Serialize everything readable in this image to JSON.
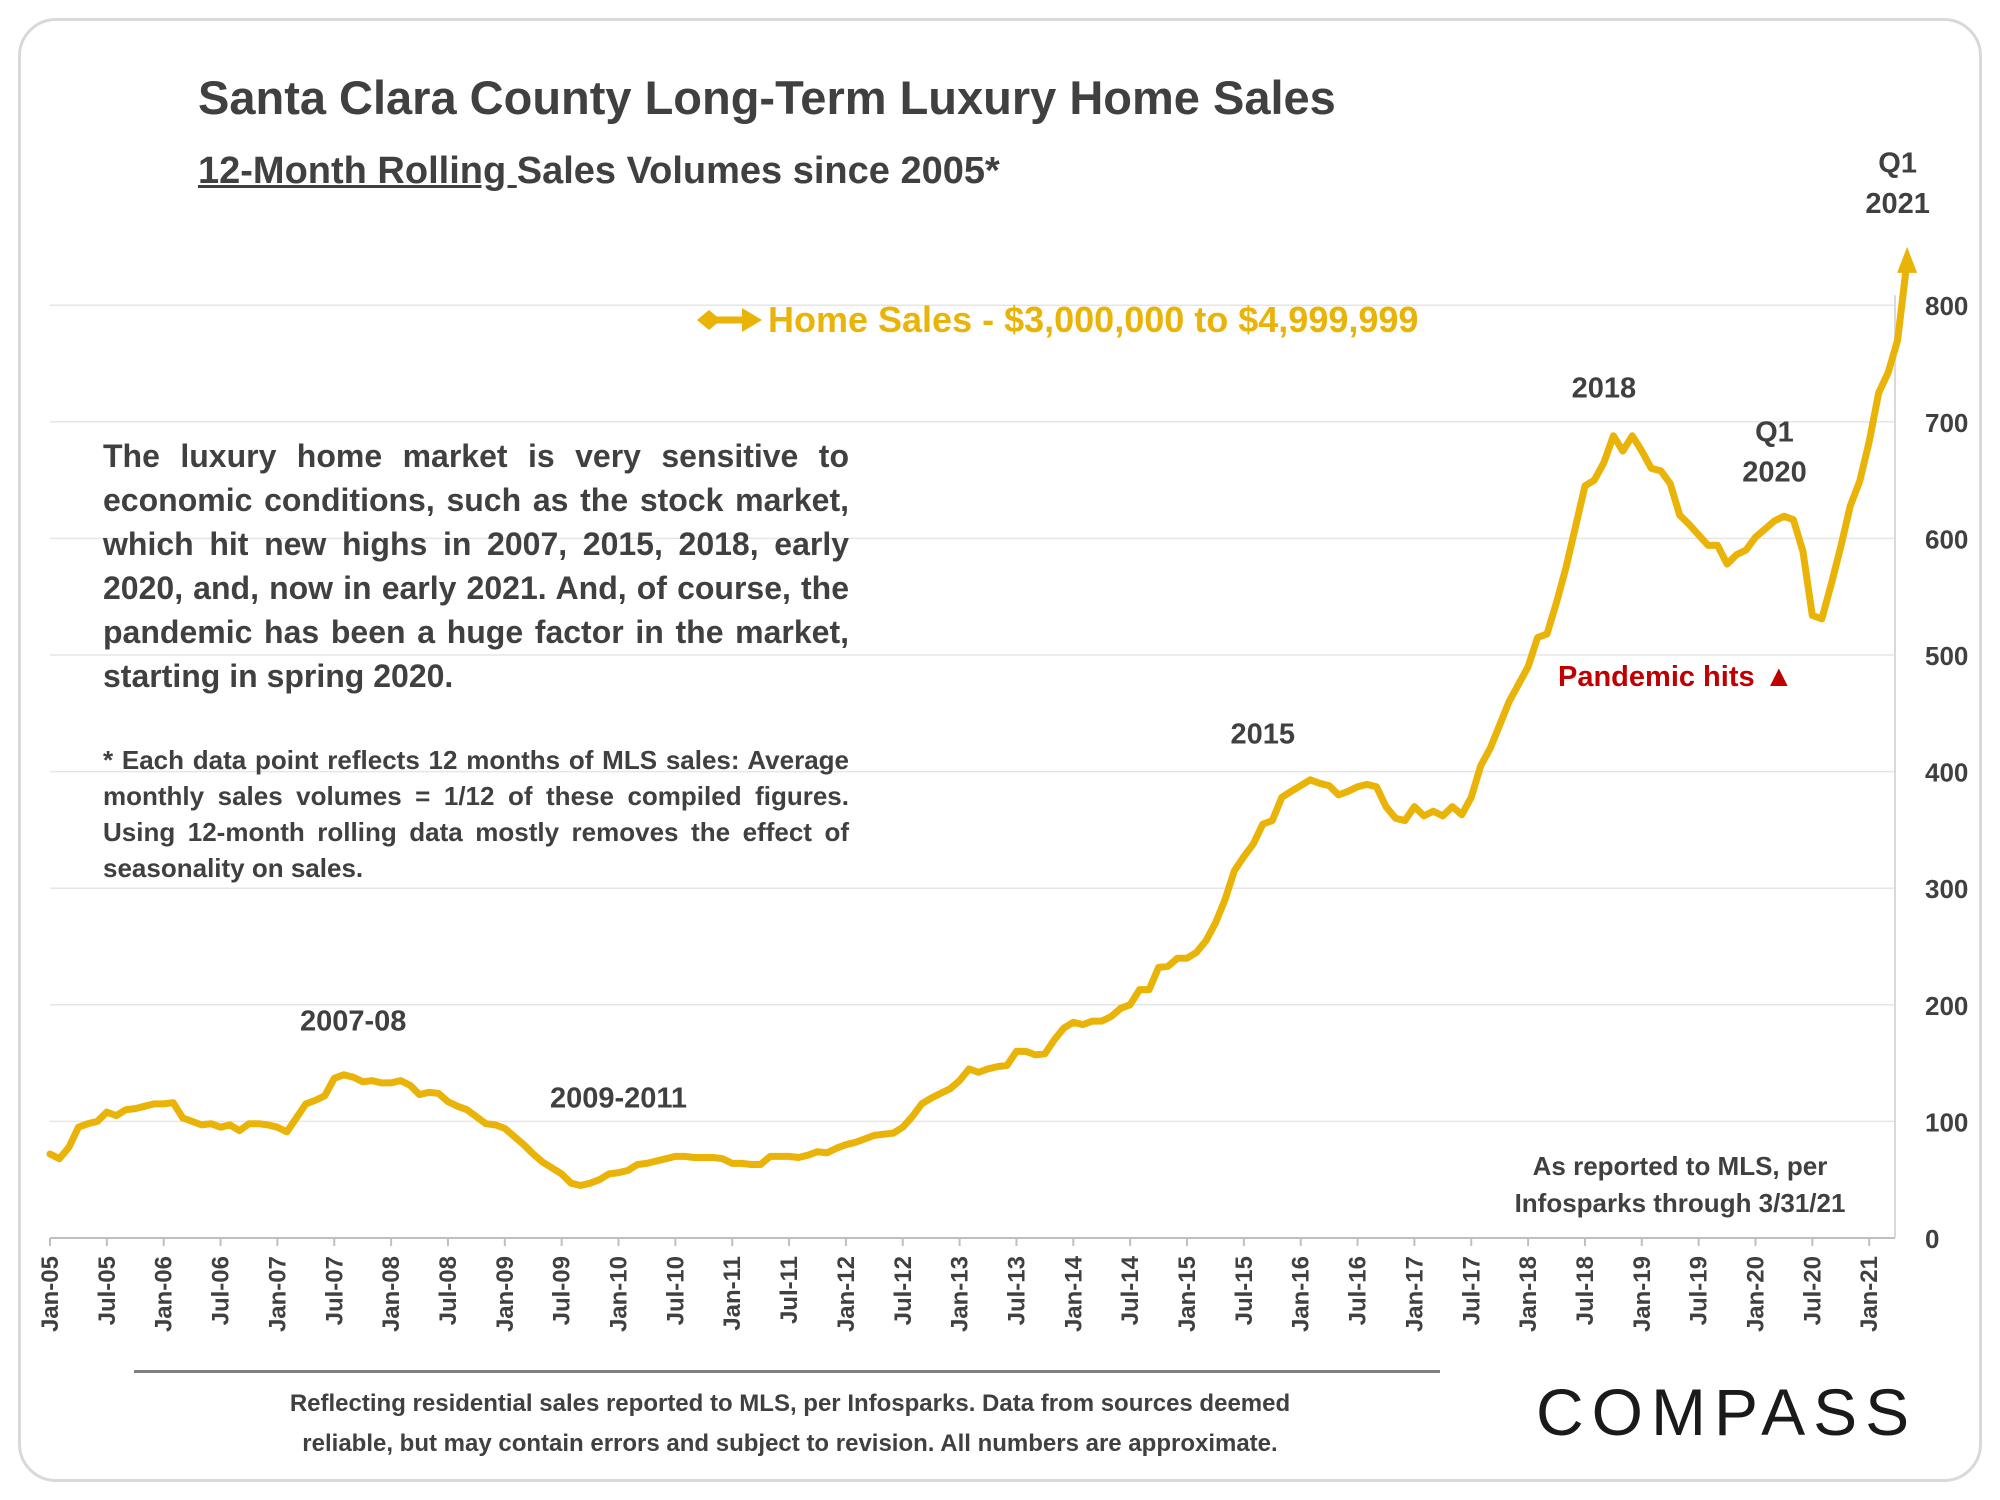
{
  "chart_data": {
    "type": "line",
    "title": "Santa Clara County Long-Term Luxury Home Sales",
    "subtitle_underlined": "12-Month Rolling ",
    "subtitle_rest": "Sales Volumes since 2005*",
    "xlabel": "",
    "ylabel": "",
    "ylim": [
      0,
      800
    ],
    "yticks": [
      0,
      100,
      200,
      300,
      400,
      500,
      600,
      700,
      800
    ],
    "grid": true,
    "legend_position": "top-center",
    "x_tick_labels": [
      "Jan-05",
      "Jul-05",
      "Jan-06",
      "Jul-06",
      "Jan-07",
      "Jul-07",
      "Jan-08",
      "Jul-08",
      "Jan-09",
      "Jul-09",
      "Jan-10",
      "Jul-10",
      "Jan-11",
      "Jul-11",
      "Jan-12",
      "Jul-12",
      "Jan-13",
      "Jul-13",
      "Jan-14",
      "Jul-14",
      "Jan-15",
      "Jul-15",
      "Jan-16",
      "Jul-16",
      "Jan-17",
      "Jul-17",
      "Jan-18",
      "Jul-18",
      "Jan-19",
      "Jul-19",
      "Jan-20",
      "Jul-20",
      "Jan-21"
    ],
    "series": [
      {
        "name": "Home Sales - $3,000,000 to $4,999,999",
        "color": "#eab308",
        "points": [
          [
            "Jan-05",
            72
          ],
          [
            "Feb-05",
            68
          ],
          [
            "Mar-05",
            78
          ],
          [
            "Apr-05",
            95
          ],
          [
            "May-05",
            98
          ],
          [
            "Jun-05",
            100
          ],
          [
            "Jul-05",
            108
          ],
          [
            "Aug-05",
            105
          ],
          [
            "Sep-05",
            110
          ],
          [
            "Oct-05",
            111
          ],
          [
            "Nov-05",
            113
          ],
          [
            "Dec-05",
            115
          ],
          [
            "Jan-06",
            115
          ],
          [
            "Feb-06",
            116
          ],
          [
            "Mar-06",
            103
          ],
          [
            "Apr-06",
            100
          ],
          [
            "May-06",
            97
          ],
          [
            "Jun-06",
            98
          ],
          [
            "Jul-06",
            95
          ],
          [
            "Aug-06",
            97
          ],
          [
            "Sep-06",
            92
          ],
          [
            "Oct-06",
            98
          ],
          [
            "Nov-06",
            98
          ],
          [
            "Dec-06",
            97
          ],
          [
            "Jan-07",
            95
          ],
          [
            "Feb-07",
            91
          ],
          [
            "Mar-07",
            103
          ],
          [
            "Apr-07",
            115
          ],
          [
            "May-07",
            118
          ],
          [
            "Jun-07",
            122
          ],
          [
            "Jul-07",
            137
          ],
          [
            "Aug-07",
            140
          ],
          [
            "Sep-07",
            138
          ],
          [
            "Oct-07",
            134
          ],
          [
            "Nov-07",
            135
          ],
          [
            "Dec-07",
            133
          ],
          [
            "Jan-08",
            133
          ],
          [
            "Feb-08",
            135
          ],
          [
            "Mar-08",
            131
          ],
          [
            "Apr-08",
            123
          ],
          [
            "May-08",
            125
          ],
          [
            "Jun-08",
            124
          ],
          [
            "Jul-08",
            117
          ],
          [
            "Aug-08",
            113
          ],
          [
            "Sep-08",
            110
          ],
          [
            "Oct-08",
            104
          ],
          [
            "Nov-08",
            98
          ],
          [
            "Dec-08",
            97
          ],
          [
            "Jan-09",
            94
          ],
          [
            "Feb-09",
            87
          ],
          [
            "Mar-09",
            80
          ],
          [
            "Apr-09",
            72
          ],
          [
            "May-09",
            65
          ],
          [
            "Jun-09",
            60
          ],
          [
            "Jul-09",
            55
          ],
          [
            "Aug-09",
            47
          ],
          [
            "Sep-09",
            45
          ],
          [
            "Oct-09",
            47
          ],
          [
            "Nov-09",
            50
          ],
          [
            "Dec-09",
            55
          ],
          [
            "Jan-10",
            56
          ],
          [
            "Feb-10",
            58
          ],
          [
            "Mar-10",
            63
          ],
          [
            "Apr-10",
            64
          ],
          [
            "May-10",
            66
          ],
          [
            "Jun-10",
            68
          ],
          [
            "Jul-10",
            70
          ],
          [
            "Aug-10",
            70
          ],
          [
            "Sep-10",
            69
          ],
          [
            "Oct-10",
            69
          ],
          [
            "Nov-10",
            69
          ],
          [
            "Dec-10",
            68
          ],
          [
            "Jan-11",
            64
          ],
          [
            "Feb-11",
            64
          ],
          [
            "Mar-11",
            63
          ],
          [
            "Apr-11",
            63
          ],
          [
            "May-11",
            70
          ],
          [
            "Jun-11",
            70
          ],
          [
            "Jul-11",
            70
          ],
          [
            "Aug-11",
            69
          ],
          [
            "Sep-11",
            71
          ],
          [
            "Oct-11",
            74
          ],
          [
            "Nov-11",
            73
          ],
          [
            "Dec-11",
            77
          ],
          [
            "Jan-12",
            80
          ],
          [
            "Feb-12",
            82
          ],
          [
            "Mar-12",
            85
          ],
          [
            "Apr-12",
            88
          ],
          [
            "May-12",
            89
          ],
          [
            "Jun-12",
            90
          ],
          [
            "Jul-12",
            95
          ],
          [
            "Aug-12",
            104
          ],
          [
            "Sep-12",
            115
          ],
          [
            "Oct-12",
            120
          ],
          [
            "Nov-12",
            124
          ],
          [
            "Dec-12",
            128
          ],
          [
            "Jan-13",
            135
          ],
          [
            "Feb-13",
            145
          ],
          [
            "Mar-13",
            142
          ],
          [
            "Apr-13",
            145
          ],
          [
            "May-13",
            147
          ],
          [
            "Jun-13",
            148
          ],
          [
            "Jul-13",
            160
          ],
          [
            "Aug-13",
            160
          ],
          [
            "Sep-13",
            157
          ],
          [
            "Oct-13",
            158
          ],
          [
            "Nov-13",
            170
          ],
          [
            "Dec-13",
            180
          ],
          [
            "Jan-14",
            185
          ],
          [
            "Feb-14",
            183
          ],
          [
            "Mar-14",
            186
          ],
          [
            "Apr-14",
            186
          ],
          [
            "May-14",
            190
          ],
          [
            "Jun-14",
            197
          ],
          [
            "Jul-14",
            200
          ],
          [
            "Aug-14",
            213
          ],
          [
            "Sep-14",
            213
          ],
          [
            "Oct-14",
            232
          ],
          [
            "Nov-14",
            233
          ],
          [
            "Dec-14",
            240
          ],
          [
            "Jan-15",
            240
          ],
          [
            "Feb-15",
            245
          ],
          [
            "Mar-15",
            255
          ],
          [
            "Apr-15",
            270
          ],
          [
            "May-15",
            290
          ],
          [
            "Jun-15",
            315
          ],
          [
            "Jul-15",
            327
          ],
          [
            "Aug-15",
            338
          ],
          [
            "Sep-15",
            355
          ],
          [
            "Oct-15",
            358
          ],
          [
            "Nov-15",
            378
          ],
          [
            "Dec-15",
            383
          ],
          [
            "Jan-16",
            388
          ],
          [
            "Feb-16",
            393
          ],
          [
            "Mar-16",
            390
          ],
          [
            "Apr-16",
            388
          ],
          [
            "May-16",
            380
          ],
          [
            "Jun-16",
            383
          ],
          [
            "Jul-16",
            387
          ],
          [
            "Aug-16",
            389
          ],
          [
            "Sep-16",
            387
          ],
          [
            "Oct-16",
            370
          ],
          [
            "Nov-16",
            360
          ],
          [
            "Dec-16",
            358
          ],
          [
            "Jan-17",
            370
          ],
          [
            "Feb-17",
            362
          ],
          [
            "Mar-17",
            366
          ],
          [
            "Apr-17",
            362
          ],
          [
            "May-17",
            370
          ],
          [
            "Jun-17",
            363
          ],
          [
            "Jul-17",
            378
          ],
          [
            "Aug-17",
            405
          ],
          [
            "Sep-17",
            420
          ],
          [
            "Oct-17",
            440
          ],
          [
            "Nov-17",
            460
          ],
          [
            "Dec-17",
            475
          ],
          [
            "Jan-18",
            490
          ],
          [
            "Feb-18",
            515
          ],
          [
            "Mar-18",
            518
          ],
          [
            "Apr-18",
            545
          ],
          [
            "May-18",
            575
          ],
          [
            "Jun-18",
            610
          ],
          [
            "Jul-18",
            645
          ],
          [
            "Aug-18",
            650
          ],
          [
            "Sep-18",
            665
          ],
          [
            "Oct-18",
            688
          ],
          [
            "Nov-18",
            675
          ],
          [
            "Dec-18",
            688
          ],
          [
            "Jan-19",
            675
          ],
          [
            "Feb-19",
            660
          ],
          [
            "Mar-19",
            658
          ],
          [
            "Apr-19",
            647
          ],
          [
            "May-19",
            620
          ],
          [
            "Jun-19",
            612
          ],
          [
            "Jul-19",
            603
          ],
          [
            "Aug-19",
            594
          ],
          [
            "Sep-19",
            594
          ],
          [
            "Oct-19",
            578
          ],
          [
            "Nov-19",
            586
          ],
          [
            "Dec-19",
            590
          ],
          [
            "Jan-20",
            601
          ],
          [
            "Feb-20",
            608
          ],
          [
            "Mar-20",
            615
          ],
          [
            "Apr-20",
            619
          ],
          [
            "May-20",
            616
          ],
          [
            "Jun-20",
            589
          ],
          [
            "Jul-20",
            534
          ],
          [
            "Aug-20",
            531
          ],
          [
            "Sep-20",
            561
          ],
          [
            "Oct-20",
            593
          ],
          [
            "Nov-20",
            628
          ],
          [
            "Dec-20",
            649
          ],
          [
            "Jan-21",
            683
          ],
          [
            "Feb-21",
            725
          ],
          [
            "Mar-21",
            742
          ],
          [
            "Apr-21",
            770
          ],
          [
            "May-21",
            838
          ]
        ]
      }
    ],
    "annotations": [
      {
        "text": "2007-08",
        "x": "Sep-07",
        "y": 178
      },
      {
        "text": "2009-2011",
        "x": "Jan-10",
        "y": 112
      },
      {
        "text": "2015",
        "x": "Sep-15",
        "y": 424
      },
      {
        "text": "2018",
        "x": "Sep-18",
        "y": 721
      },
      {
        "text": "Q1",
        "x": "Mar-20",
        "y": 683
      },
      {
        "text": "2020",
        "x": "Mar-20",
        "y": 649
      },
      {
        "text": "Q1",
        "x": "Apr-21",
        "y": 914
      },
      {
        "text": "2021",
        "x": "Apr-21",
        "y": 879
      }
    ],
    "pandemic_label": "Pandemic hits",
    "pandemic_marker": "▲",
    "pandemic_color": "#c00000"
  },
  "description": "The luxury home market is very sensitive to economic conditions, such as the stock market, which hit new highs in 2007, 2015, 2018, early 2020, and, now in early 2021. And, of course, the pandemic has been a huge factor in the market, starting in spring 2020.",
  "footnote": "* Each data point reflects 12 months of MLS sales: Average monthly sales volumes = 1/12 of these compiled figures. Using 12-month rolling data mostly removes the effect of seasonality on sales.",
  "source_line1": "As reported to MLS, per",
  "source_line2": "Infosparks through 3/31/21",
  "footer_line1": "Reflecting residential sales reported to MLS, per Infosparks. Data from sources deemed",
  "footer_line2": "reliable, but may contain errors and subject to revision. All numbers are approximate.",
  "brand": "COMPASS",
  "colors": {
    "line": "#eab308",
    "text": "#404040",
    "accent": "#c00000",
    "grid": "#e6e6e6"
  }
}
